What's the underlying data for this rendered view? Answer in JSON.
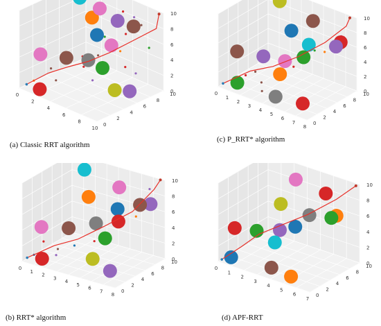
{
  "figure": {
    "panels": [
      {
        "id": "a",
        "caption": "(a)   Classic RRT algorithm"
      },
      {
        "id": "c",
        "caption": "(c)   P_RRT* algorithm"
      },
      {
        "id": "b",
        "caption": "(b)   RRT* algorithm"
      },
      {
        "id": "d",
        "caption": "(d) APF-RRT"
      }
    ]
  },
  "chart_data": [
    {
      "type": "scatter3d",
      "panel": "a",
      "title": "Classic RRT algorithm",
      "xlim": [
        0,
        10
      ],
      "ylim": [
        0,
        10
      ],
      "zlim": [
        0,
        10
      ],
      "x_ticks": [
        "0",
        "2",
        "4",
        "6",
        "8",
        "10"
      ],
      "y_ticks": [
        "0",
        "2",
        "4",
        "6",
        "8",
        "10"
      ],
      "z_ticks": [
        "0",
        "2",
        "4",
        "6",
        "8",
        "10"
      ],
      "grid": true,
      "obstacles": [
        {
          "x": 0.5,
          "y": 8.5,
          "z": 8.5,
          "color": "#17becf"
        },
        {
          "x": 3.5,
          "y": 8.0,
          "z": 8.6,
          "color": "#e377c2"
        },
        {
          "x": 5.8,
          "y": 8.0,
          "z": 8.0,
          "color": "#9467bd"
        },
        {
          "x": 2.5,
          "y": 8.0,
          "z": 7.0,
          "color": "#ff7f0e"
        },
        {
          "x": 4.0,
          "y": 7.0,
          "z": 5.8,
          "color": "#1f77b4"
        },
        {
          "x": 7.0,
          "y": 9.0,
          "z": 7.4,
          "color": "#8c564b"
        },
        {
          "x": 5.0,
          "y": 8.0,
          "z": 4.5,
          "color": "#e377c2"
        },
        {
          "x": 1.0,
          "y": 2.0,
          "z": 4.0,
          "color": "#e377c2"
        },
        {
          "x": 2.8,
          "y": 3.8,
          "z": 3.6,
          "color": "#8c564b"
        },
        {
          "x": 4.6,
          "y": 5.0,
          "z": 3.6,
          "color": "#7f7f7f"
        },
        {
          "x": 6.0,
          "y": 5.5,
          "z": 3.0,
          "color": "#2ca02c"
        },
        {
          "x": 2.2,
          "y": 0.5,
          "z": 0.6,
          "color": "#d62728"
        },
        {
          "x": 8.0,
          "y": 5.0,
          "z": 1.2,
          "color": "#bcbd22"
        },
        {
          "x": 9.5,
          "y": 5.5,
          "z": 1.5,
          "color": "#9467bd"
        }
      ],
      "path": [
        [
          0.5,
          0.5,
          0.5
        ],
        [
          2,
          2,
          2
        ],
        [
          3.5,
          3,
          3
        ],
        [
          5,
          4.5,
          3.8
        ],
        [
          6.5,
          6,
          5
        ],
        [
          8,
          8,
          6.5
        ],
        [
          9.5,
          9.5,
          8
        ],
        [
          9.6,
          9.8,
          9.8
        ]
      ],
      "tree_points": [
        [
          1,
          1,
          1
        ],
        [
          1.5,
          3,
          2
        ],
        [
          3,
          2,
          1.5
        ],
        [
          4,
          5,
          2.5
        ],
        [
          5,
          6,
          4
        ],
        [
          6,
          4,
          2
        ],
        [
          7,
          7,
          5
        ],
        [
          6,
          9,
          6
        ],
        [
          8,
          9,
          8
        ],
        [
          7.5,
          8.5,
          9
        ],
        [
          5,
          7,
          6
        ],
        [
          8.5,
          6,
          4
        ],
        [
          9,
          7,
          3
        ],
        [
          4,
          3,
          4.5
        ],
        [
          6.5,
          8,
          9.5
        ],
        [
          9,
          9,
          5.5
        ],
        [
          3,
          6,
          3
        ]
      ]
    },
    {
      "type": "scatter3d",
      "panel": "c",
      "title": "P_RRT* algorithm",
      "xlim": [
        0,
        8
      ],
      "ylim": [
        0,
        10
      ],
      "zlim": [
        0,
        10
      ],
      "x_ticks": [
        "0",
        "1",
        "2",
        "3",
        "4",
        "5",
        "6",
        "7",
        "8"
      ],
      "y_ticks": [
        "0",
        "2",
        "4",
        "6",
        "8",
        "10"
      ],
      "z_ticks": [
        "0",
        "2",
        "4",
        "6",
        "8",
        "10"
      ],
      "grid": true,
      "obstacles": [
        {
          "x": 1.5,
          "y": 9.0,
          "z": 9.0,
          "color": "#bcbd22"
        },
        {
          "x": 4.5,
          "y": 9.0,
          "z": 8.0,
          "color": "#8c564b"
        },
        {
          "x": 7.0,
          "y": 9.0,
          "z": 6.5,
          "color": "#d62728"
        },
        {
          "x": 3.0,
          "y": 8.0,
          "z": 6.2,
          "color": "#1f77b4"
        },
        {
          "x": 4.8,
          "y": 7.5,
          "z": 5.5,
          "color": "#17becf"
        },
        {
          "x": 6.8,
          "y": 8.5,
          "z": 6.0,
          "color": "#9467bd"
        },
        {
          "x": 5.0,
          "y": 6.0,
          "z": 4.5,
          "color": "#2ca02c"
        },
        {
          "x": 0.8,
          "y": 2.0,
          "z": 4.5,
          "color": "#8c564b"
        },
        {
          "x": 2.5,
          "y": 3.5,
          "z": 4.2,
          "color": "#9467bd"
        },
        {
          "x": 4.0,
          "y": 4.5,
          "z": 4.0,
          "color": "#e377c2"
        },
        {
          "x": 4.0,
          "y": 3.5,
          "z": 2.6,
          "color": "#ff7f0e"
        },
        {
          "x": 1.5,
          "y": 0.5,
          "z": 1.2,
          "color": "#2ca02c"
        },
        {
          "x": 4.5,
          "y": 1.5,
          "z": 0.6,
          "color": "#7f7f7f"
        },
        {
          "x": 6.5,
          "y": 2.5,
          "z": 0.4,
          "color": "#d62728"
        }
      ],
      "path": [
        [
          0.3,
          0.3,
          0.5
        ],
        [
          2,
          2,
          2.5
        ],
        [
          3.5,
          3.2,
          3.5
        ],
        [
          5,
          5,
          5
        ],
        [
          6.5,
          7,
          7
        ],
        [
          7.5,
          9,
          9
        ],
        [
          7.6,
          9.5,
          10
        ]
      ],
      "tree_points": [
        [
          1,
          1,
          1
        ],
        [
          3,
          2,
          1.5
        ],
        [
          2,
          3,
          2
        ],
        [
          5,
          4,
          4
        ],
        [
          6,
          6,
          6
        ],
        [
          1.8,
          1.5,
          2
        ],
        [
          3.5,
          1,
          1
        ],
        [
          6,
          8,
          5
        ],
        [
          7.5,
          8,
          8
        ]
      ]
    },
    {
      "type": "scatter3d",
      "panel": "b",
      "title": "RRT* algorithm",
      "xlim": [
        0,
        8
      ],
      "ylim": [
        0,
        10
      ],
      "zlim": [
        0,
        10
      ],
      "x_ticks": [
        "0",
        "1",
        "2",
        "3",
        "4",
        "5",
        "6",
        "7",
        "8"
      ],
      "y_ticks": [
        "0",
        "2",
        "4",
        "6",
        "8",
        "10"
      ],
      "z_ticks": [
        "0",
        "2",
        "4",
        "6",
        "8",
        "10"
      ],
      "grid": true,
      "obstacles": [
        {
          "x": 1.5,
          "y": 9.0,
          "z": 9.0,
          "color": "#17becf"
        },
        {
          "x": 4.5,
          "y": 9.0,
          "z": 8.0,
          "color": "#e377c2"
        },
        {
          "x": 2.5,
          "y": 7.5,
          "z": 6.5,
          "color": "#ff7f0e"
        },
        {
          "x": 5.0,
          "y": 7.5,
          "z": 6.0,
          "color": "#1f77b4"
        },
        {
          "x": 6.5,
          "y": 8.5,
          "z": 6.8,
          "color": "#8c564b"
        },
        {
          "x": 7.2,
          "y": 9.0,
          "z": 7.0,
          "color": "#9467bd"
        },
        {
          "x": 5.5,
          "y": 6.5,
          "z": 5.0,
          "color": "#d62728"
        },
        {
          "x": 4.0,
          "y": 5.5,
          "z": 4.5,
          "color": "#7f7f7f"
        },
        {
          "x": 0.8,
          "y": 2.0,
          "z": 4.0,
          "color": "#e377c2"
        },
        {
          "x": 2.5,
          "y": 3.5,
          "z": 4.0,
          "color": "#8c564b"
        },
        {
          "x": 5.0,
          "y": 5.0,
          "z": 3.2,
          "color": "#2ca02c"
        },
        {
          "x": 1.5,
          "y": 0.5,
          "z": 0.8,
          "color": "#d62728"
        },
        {
          "x": 5.0,
          "y": 2.5,
          "z": 1.5,
          "color": "#bcbd22"
        },
        {
          "x": 6.5,
          "y": 2.5,
          "z": 0.6,
          "color": "#9467bd"
        }
      ],
      "path": [
        [
          0.3,
          0.3,
          0.5
        ],
        [
          2,
          1.8,
          2.2
        ],
        [
          3.5,
          3,
          3.2
        ],
        [
          5,
          4.8,
          4.8
        ],
        [
          6.5,
          7,
          6.5
        ],
        [
          7.5,
          9,
          9
        ],
        [
          7.7,
          9.8,
          10
        ]
      ],
      "tree_points": [
        [
          0.8,
          0.5,
          1
        ],
        [
          1.2,
          1.5,
          2.5
        ],
        [
          2,
          2.5,
          1.5
        ],
        [
          3,
          3.5,
          2
        ],
        [
          4.5,
          4,
          3
        ],
        [
          6,
          6,
          5.5
        ],
        [
          7.2,
          8.8,
          9
        ],
        [
          6.8,
          7,
          6
        ],
        [
          2.5,
          1,
          1.5
        ]
      ]
    },
    {
      "type": "scatter3d",
      "panel": "d",
      "title": "APF-RRT",
      "xlim": [
        0,
        7
      ],
      "ylim": [
        0,
        10
      ],
      "zlim": [
        0,
        10
      ],
      "x_ticks": [
        "0",
        "1",
        "2",
        "3",
        "4",
        "5",
        "6",
        "7"
      ],
      "y_ticks": [
        "0",
        "2",
        "4",
        "6",
        "8",
        "10"
      ],
      "z_ticks": [
        "0",
        "2",
        "4",
        "6",
        "8",
        "10"
      ],
      "grid": true,
      "obstacles": [
        {
          "x": 2.5,
          "y": 9.0,
          "z": 8.5,
          "color": "#e377c2"
        },
        {
          "x": 4.8,
          "y": 9.0,
          "z": 8.0,
          "color": "#d62728"
        },
        {
          "x": 2.5,
          "y": 6.0,
          "z": 6.5,
          "color": "#bcbd22"
        },
        {
          "x": 4.5,
          "y": 6.5,
          "z": 6.0,
          "color": "#7f7f7f"
        },
        {
          "x": 6.0,
          "y": 8.0,
          "z": 6.2,
          "color": "#ff7f0e"
        },
        {
          "x": 5.8,
          "y": 7.5,
          "z": 6.0,
          "color": "#2ca02c"
        },
        {
          "x": 3.8,
          "y": 5.5,
          "z": 4.5,
          "color": "#1f77b4"
        },
        {
          "x": 0.5,
          "y": 2.0,
          "z": 3.8,
          "color": "#d62728"
        },
        {
          "x": 1.8,
          "y": 3.0,
          "z": 3.8,
          "color": "#2ca02c"
        },
        {
          "x": 3.0,
          "y": 4.5,
          "z": 4.0,
          "color": "#9467bd"
        },
        {
          "x": 3.0,
          "y": 3.5,
          "z": 2.8,
          "color": "#17becf"
        },
        {
          "x": 0.8,
          "y": 0.5,
          "z": 0.8,
          "color": "#1f77b4"
        },
        {
          "x": 3.5,
          "y": 1.5,
          "z": 0.6,
          "color": "#8c564b"
        },
        {
          "x": 5.0,
          "y": 1.5,
          "z": 0.3,
          "color": "#ff7f0e"
        }
      ],
      "path": [
        [
          0.2,
          0.2,
          0.3
        ],
        [
          1.2,
          1.5,
          2
        ],
        [
          2,
          3,
          3.5
        ],
        [
          3.2,
          4.5,
          4.8
        ],
        [
          4.5,
          6.2,
          6.2
        ],
        [
          5.8,
          8.5,
          8
        ],
        [
          6.8,
          9.8,
          9.8
        ]
      ],
      "tree_points": [
        [
          6.8,
          9.8,
          9.8
        ]
      ]
    }
  ]
}
